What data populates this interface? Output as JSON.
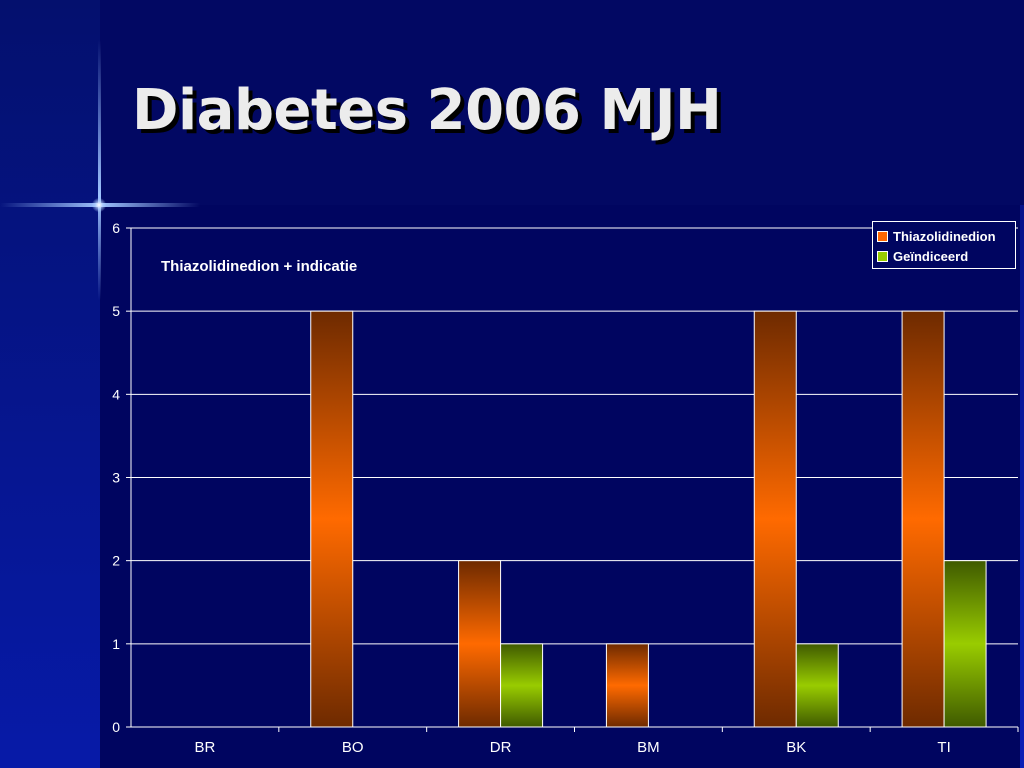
{
  "slide": {
    "title": "Diabetes 2006 MJH"
  },
  "chart_data": {
    "type": "bar",
    "categories": [
      "BR",
      "BO",
      "DR",
      "BM",
      "BK",
      "TI"
    ],
    "series": [
      {
        "name": "Thiazolidinedion",
        "values": [
          0,
          5,
          2,
          1,
          5,
          5
        ],
        "color": "#ff6600"
      },
      {
        "name": "Geïndiceerd",
        "values": [
          0,
          0,
          1,
          0,
          1,
          2
        ],
        "color": "#99cc00"
      }
    ],
    "annotation": "Thiazolidinedion + indicatie",
    "ylim": [
      0,
      6
    ],
    "yticks": [
      0,
      1,
      2,
      3,
      4,
      5,
      6
    ],
    "grid": true,
    "legend_position": "top-right"
  }
}
